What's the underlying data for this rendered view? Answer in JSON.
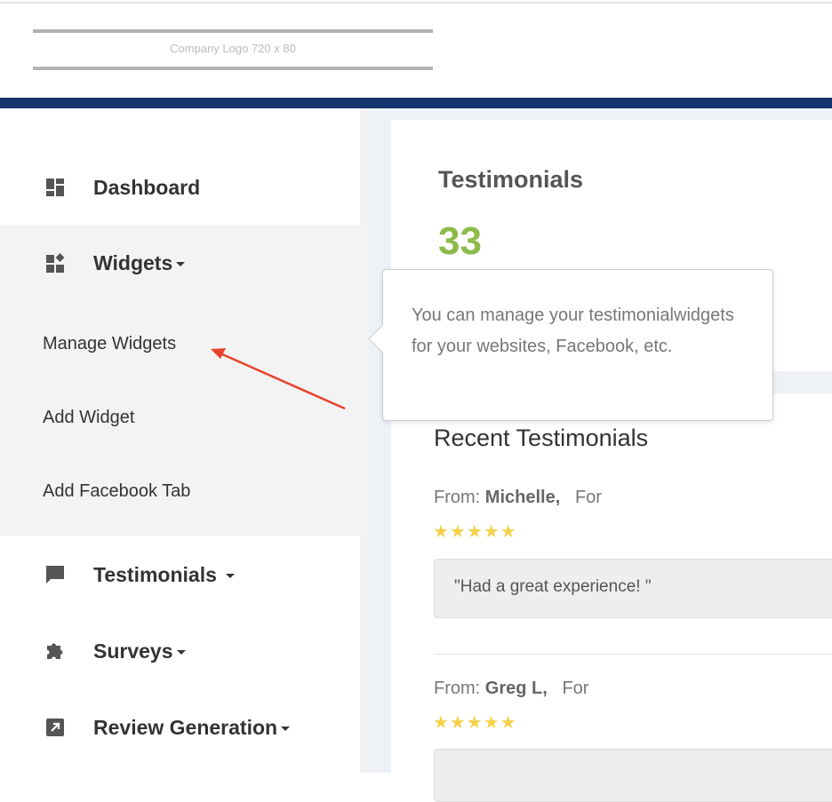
{
  "header": {
    "logo_text": "Company Logo 720 x 80"
  },
  "sidebar": {
    "items": [
      {
        "label": "Dashboard",
        "icon": "dashboard-icon"
      },
      {
        "label": "Widgets",
        "icon": "widgets-icon",
        "sub": [
          "Manage Widgets",
          "Add Widget",
          "Add Facebook Tab"
        ]
      },
      {
        "label": "Testimonials",
        "icon": "chat-icon"
      },
      {
        "label": "Surveys",
        "icon": "puzzle-icon"
      },
      {
        "label": "Review Generation",
        "icon": "external-link-icon"
      }
    ]
  },
  "stats": {
    "title": "Testimonials",
    "count": "33",
    "count_color": "#8dbb4b"
  },
  "tooltip": {
    "text": "You can manage your testimonialwidgets for your websites, Facebook, etc."
  },
  "recent": {
    "title": "Recent Testimonials",
    "from_label": "From:",
    "for_label": "For",
    "items": [
      {
        "name": "Michelle,",
        "rating": 5,
        "quote": "\"Had a great experience! \""
      },
      {
        "name": "Greg L,",
        "rating": 5
      }
    ]
  },
  "colors": {
    "navy": "#15356e",
    "star": "#f5d14b",
    "arrow": "#e8432d"
  }
}
